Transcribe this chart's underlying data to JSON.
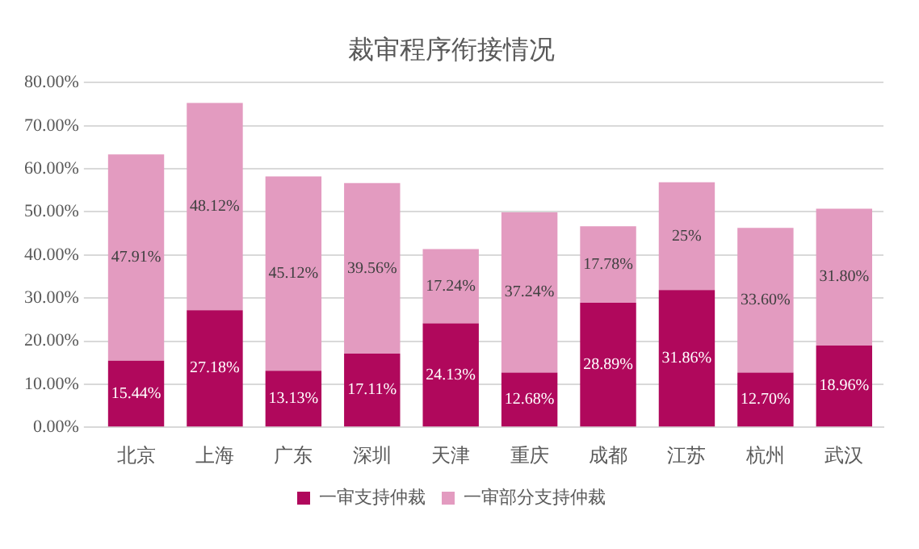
{
  "chart_data": {
    "type": "bar",
    "title": "裁审程序衔接情况",
    "stacked": true,
    "categories": [
      "北京",
      "上海",
      "广东",
      "深圳",
      "天津",
      "重庆",
      "成都",
      "江苏",
      "杭州",
      "武汉"
    ],
    "series": [
      {
        "name": "一审支持仲裁",
        "color": "#b0085c",
        "values": [
          15.44,
          27.18,
          13.13,
          17.11,
          24.13,
          12.68,
          28.89,
          31.86,
          12.7,
          18.96
        ],
        "value_labels": [
          "15.44%",
          "27.18%",
          "13.13%",
          "17.11%",
          "24.13%",
          "12.68%",
          "28.89%",
          "31.86%",
          "12.70%",
          "18.96%"
        ]
      },
      {
        "name": "一审部分支持仲裁",
        "color": "#e39bc0",
        "values": [
          47.91,
          48.12,
          45.12,
          39.56,
          17.24,
          37.24,
          17.78,
          25,
          33.6,
          31.8
        ],
        "value_labels": [
          "47.91%",
          "48.12%",
          "45.12%",
          "39.56%",
          "17.24%",
          "37.24%",
          "17.78%",
          "25%",
          "33.60%",
          "31.80%"
        ]
      }
    ],
    "ylim": [
      0,
      80
    ],
    "yticks": [
      {
        "value": 0,
        "label": "0.00%"
      },
      {
        "value": 10,
        "label": "10.00%"
      },
      {
        "value": 20,
        "label": "20.00%"
      },
      {
        "value": 30,
        "label": "30.00%"
      },
      {
        "value": 40,
        "label": "40.00%"
      },
      {
        "value": 50,
        "label": "50.00%"
      },
      {
        "value": 60,
        "label": "60.00%"
      },
      {
        "value": 70,
        "label": "70.00%"
      },
      {
        "value": 80,
        "label": "80.00%"
      }
    ],
    "grid": "y",
    "legend": "bottom"
  }
}
